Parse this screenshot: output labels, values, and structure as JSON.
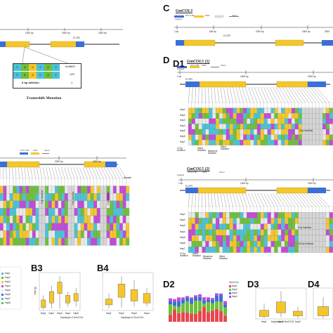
{
  "panels": {
    "c_letter": "C",
    "d_letter": "D",
    "d1_letter": "D1",
    "b3_letter": "B3",
    "b4_letter": "B4",
    "d2_letter": "D2",
    "d3_letter": "D3",
    "d4_letter": "D4"
  },
  "gene_c": "GmCOL3",
  "gene_d1": "GmCOL5 (1)",
  "gene_d1b": "GmCOL5 (2)",
  "legend": {
    "legend_word": "Legend",
    "utr": "5'/3' UTR",
    "cds": "CDS",
    "intron": "Intron"
  },
  "scale_top_left": [
    "1000 bp",
    "1500 bp",
    "2000 bp"
  ],
  "scale_c": [
    "1 bp",
    "500 bp",
    "1000 bp",
    "1500 bp",
    "2000"
  ],
  "scale_d1": [
    "1 bp",
    "1000 bp",
    "2000 bp"
  ],
  "scale_d1b": [
    "1 bp",
    "1000 bp",
    "2000 bp"
  ],
  "scale_mid_left": [
    "2000 bp",
    "3000 bp"
  ],
  "utr_label": "5' UTR",
  "mutation_box": {
    "row1": [
      "C",
      "A",
      "G",
      "C",
      "A",
      "C"
    ],
    "row2": [
      "C",
      "A",
      "G",
      "C",
      "A",
      "C"
    ],
    "number_header": "NUMBER",
    "count1": "125",
    "count2": "1",
    "deletion": "6 bp deletion"
  },
  "frameshift": "Frameshift Mutation",
  "annotations": {
    "bp_insertion_1": "5 bp Insertion",
    "bp_insertion_2": "3 bp Insertion",
    "bp_insertion_3": "2 bp Deletion",
    "d1_insertion": "5 bp Insertion",
    "d1b_insertion": "5 bp Insertion",
    "d1b_deletion": "102 bp Deletion",
    "bp_deletion_d1": "17 bp Deletion",
    "silent_d1": "Silent Mutation",
    "missense_d1": "Missense Mutation",
    "silent2_d1": "Silent Mutation",
    "bp_deletion_d1b": "17 bp Deletion",
    "silent_d1b": "Silent Mutation",
    "missense_d1b": "Missense Mutation",
    "silent2_d1b": "Silent Mutation"
  },
  "hap_labels": [
    "Hap1",
    "Hap2",
    "Hap3",
    "Hap4",
    "Hap5",
    "Hap6",
    "Hap7"
  ],
  "hap_labels_b": [
    "Hap1",
    "Hap2",
    "Hap3",
    "Hap4",
    "Hap5",
    "Hap6"
  ],
  "left_table_number": "Number",
  "b3_chart": {
    "xlabel": "Haplotype of GmCOL3",
    "ylabel": "Yield (g)",
    "categories": [
      "Hap1",
      "Hap2",
      "Hap3",
      "Hap4",
      "Hap5"
    ],
    "box_color": "#f3c62b"
  },
  "b4_chart": {
    "xlabel": "Haplotype of GmCOL3",
    "ylabel": "",
    "categories": [
      "Hap1",
      "Hap2",
      "Hap3",
      "Hap4"
    ],
    "box_color": "#f3c62b"
  },
  "d2_chart": {
    "legend_title": "GmCOL5",
    "legend_items": [
      "Hap1",
      "Hap2",
      "Hap3",
      "Hap4"
    ],
    "colors": [
      "#e8464f",
      "#6fbf3c",
      "#3a6fd8",
      "#c04bd8"
    ]
  },
  "d3_chart": {
    "xlabel": "Haplotype of GmCOL5",
    "categories": [
      "Hap1",
      "Hap2",
      "Hap3"
    ],
    "box_color": "#f3c62b"
  },
  "left_legend": [
    "Hap1",
    "Hap2",
    "Hap3",
    "Hap4",
    "Hap5",
    "Hap6",
    "Hap7",
    "Hap8"
  ]
}
